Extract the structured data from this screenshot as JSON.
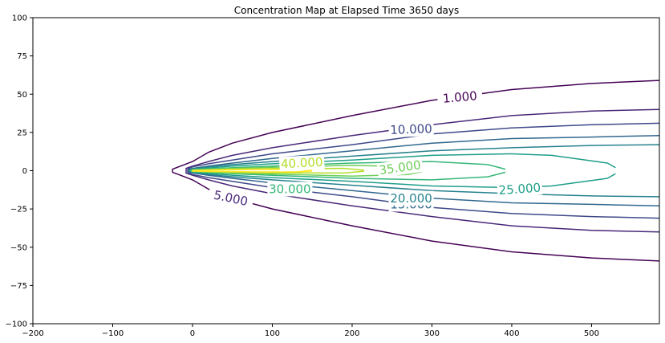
{
  "chart_data": {
    "type": "contour",
    "title": "Concentration Map at Elapsed Time 3650 days",
    "xlim": [
      -200,
      585
    ],
    "ylim": [
      -100,
      100
    ],
    "x_ticks": [
      -200,
      -100,
      0,
      100,
      200,
      300,
      400,
      500
    ],
    "y_ticks": [
      -100,
      -75,
      -50,
      -25,
      0,
      25,
      50,
      75,
      100
    ],
    "grid": false,
    "colormap": "viridis",
    "contours": [
      {
        "level": 1.0,
        "color": "#440154",
        "points": [
          [
            585,
            59
          ],
          [
            500,
            57
          ],
          [
            400,
            53
          ],
          [
            300,
            46
          ],
          [
            200,
            36
          ],
          [
            100,
            25
          ],
          [
            50,
            18
          ],
          [
            20,
            12
          ],
          [
            0,
            6
          ],
          [
            -10,
            4
          ],
          [
            -25,
            1
          ],
          [
            -25,
            -1
          ],
          [
            -10,
            -4
          ],
          [
            0,
            -6
          ],
          [
            20,
            -12
          ],
          [
            50,
            -18
          ],
          [
            100,
            -25
          ],
          [
            200,
            -36
          ],
          [
            300,
            -46
          ],
          [
            400,
            -53
          ],
          [
            500,
            -57
          ],
          [
            585,
            -59
          ]
        ],
        "label": {
          "text": "1.000",
          "x": 335,
          "y": 48,
          "rotation": -5
        }
      },
      {
        "level": 5.0,
        "color": "#482878",
        "points": [
          [
            585,
            40
          ],
          [
            500,
            39
          ],
          [
            400,
            36
          ],
          [
            300,
            30
          ],
          [
            200,
            23
          ],
          [
            100,
            15
          ],
          [
            50,
            10
          ],
          [
            20,
            6
          ],
          [
            0,
            3
          ],
          [
            -8,
            1.5
          ],
          [
            -8,
            -1.5
          ],
          [
            0,
            -3
          ],
          [
            20,
            -6
          ],
          [
            50,
            -10
          ],
          [
            100,
            -15
          ],
          [
            200,
            -23
          ],
          [
            300,
            -30
          ],
          [
            400,
            -36
          ],
          [
            500,
            -39
          ],
          [
            585,
            -40
          ]
        ],
        "label": {
          "text": "5.000",
          "x": 48,
          "y": -18,
          "rotation": 12
        }
      },
      {
        "level": 10.0,
        "color": "#3e4989",
        "points": [
          [
            585,
            31
          ],
          [
            500,
            30
          ],
          [
            400,
            28
          ],
          [
            300,
            24
          ],
          [
            200,
            17
          ],
          [
            100,
            11
          ],
          [
            50,
            7
          ],
          [
            20,
            4.5
          ],
          [
            0,
            2.5
          ],
          [
            -6,
            1
          ],
          [
            -6,
            -1
          ],
          [
            0,
            -2.5
          ],
          [
            20,
            -4.5
          ],
          [
            50,
            -7
          ],
          [
            100,
            -11
          ],
          [
            200,
            -17
          ],
          [
            300,
            -24
          ],
          [
            400,
            -28
          ],
          [
            500,
            -30
          ],
          [
            585,
            -31
          ]
        ],
        "label": {
          "text": "10.000",
          "x": 274,
          "y": 27,
          "rotation": -2
        }
      },
      {
        "level": 15.0,
        "color": "#31688e",
        "points": [
          [
            585,
            23
          ],
          [
            500,
            22
          ],
          [
            400,
            21
          ],
          [
            300,
            18
          ],
          [
            200,
            13
          ],
          [
            100,
            8
          ],
          [
            50,
            5
          ],
          [
            20,
            3
          ],
          [
            0,
            1.5
          ],
          [
            -5,
            0.5
          ],
          [
            -5,
            -0.5
          ],
          [
            0,
            -1.5
          ],
          [
            20,
            -3
          ],
          [
            50,
            -5
          ],
          [
            100,
            -8
          ],
          [
            200,
            -13
          ],
          [
            300,
            -18
          ],
          [
            400,
            -21
          ],
          [
            500,
            -22
          ],
          [
            585,
            -23
          ]
        ],
        "label": {
          "text": "15.000",
          "x": 274,
          "y": -22,
          "rotation": 0
        }
      },
      {
        "level": 20.0,
        "color": "#26828e",
        "points": [
          [
            585,
            17
          ],
          [
            500,
            16.5
          ],
          [
            400,
            15
          ],
          [
            300,
            13
          ],
          [
            200,
            9.5
          ],
          [
            100,
            6
          ],
          [
            50,
            4
          ],
          [
            20,
            2.5
          ],
          [
            0,
            1.2
          ],
          [
            -4,
            0.4
          ],
          [
            -4,
            -0.4
          ],
          [
            0,
            -1.2
          ],
          [
            20,
            -2.5
          ],
          [
            50,
            -4
          ],
          [
            100,
            -6
          ],
          [
            200,
            -9.5
          ],
          [
            300,
            -13
          ],
          [
            400,
            -15
          ],
          [
            500,
            -16.5
          ],
          [
            585,
            -17
          ]
        ],
        "label": {
          "text": "20.000",
          "x": 274,
          "y": -18,
          "rotation": 0
        }
      },
      {
        "level": 25.0,
        "color": "#1f9e89",
        "points": [
          [
            530,
            2
          ],
          [
            520,
            5
          ],
          [
            450,
            10
          ],
          [
            400,
            11
          ],
          [
            300,
            10
          ],
          [
            200,
            7
          ],
          [
            100,
            4.5
          ],
          [
            50,
            3
          ],
          [
            20,
            1.8
          ],
          [
            0,
            1
          ],
          [
            -3,
            0.3
          ],
          [
            -3,
            -0.3
          ],
          [
            0,
            -1
          ],
          [
            20,
            -1.8
          ],
          [
            50,
            -3
          ],
          [
            100,
            -4.5
          ],
          [
            200,
            -7
          ],
          [
            300,
            -10
          ],
          [
            400,
            -11
          ],
          [
            450,
            -10
          ],
          [
            520,
            -5
          ],
          [
            530,
            -2
          ]
        ],
        "label": {
          "text": "25.000",
          "x": 410,
          "y": -12,
          "rotation": -4
        }
      },
      {
        "level": 30.0,
        "color": "#35b779",
        "points": [
          [
            392,
            1
          ],
          [
            370,
            4
          ],
          [
            300,
            6
          ],
          [
            200,
            5
          ],
          [
            100,
            3
          ],
          [
            50,
            2
          ],
          [
            20,
            1.2
          ],
          [
            0,
            0.6
          ],
          [
            -2,
            0.2
          ],
          [
            -2,
            -0.2
          ],
          [
            0,
            -0.6
          ],
          [
            20,
            -1.2
          ],
          [
            50,
            -2
          ],
          [
            100,
            -3
          ],
          [
            200,
            -5
          ],
          [
            300,
            -6
          ],
          [
            370,
            -4
          ],
          [
            392,
            -1
          ]
        ],
        "label": {
          "text": "30.000",
          "x": 122,
          "y": -12,
          "rotation": 0
        }
      },
      {
        "level": 35.0,
        "color": "#6ece58",
        "points": [
          [
            288,
            0.5
          ],
          [
            270,
            2.5
          ],
          [
            200,
            3.5
          ],
          [
            100,
            2.2
          ],
          [
            50,
            1.5
          ],
          [
            20,
            0.9
          ],
          [
            0,
            0.4
          ],
          [
            -1,
            0.1
          ],
          [
            -1,
            -0.1
          ],
          [
            0,
            -0.4
          ],
          [
            20,
            -0.9
          ],
          [
            50,
            -1.5
          ],
          [
            100,
            -2.2
          ],
          [
            200,
            -3.5
          ],
          [
            270,
            -2.5
          ],
          [
            288,
            -0.5
          ]
        ],
        "label": {
          "text": "35.000",
          "x": 260,
          "y": 2,
          "rotation": -8
        }
      },
      {
        "level": 40.0,
        "color": "#b5de2b",
        "points": [
          [
            215,
            0.3
          ],
          [
            190,
            1.5
          ],
          [
            100,
            1.4
          ],
          [
            50,
            1
          ],
          [
            20,
            0.6
          ],
          [
            0,
            0.25
          ],
          [
            -0.5,
            0.05
          ],
          [
            -0.5,
            -0.05
          ],
          [
            0,
            -0.25
          ],
          [
            20,
            -0.6
          ],
          [
            50,
            -1
          ],
          [
            100,
            -1.4
          ],
          [
            190,
            -1.5
          ],
          [
            215,
            -0.3
          ]
        ],
        "label": {
          "text": "40.000",
          "x": 137,
          "y": 5,
          "rotation": -3
        }
      },
      {
        "level": 45.0,
        "color": "#fde725",
        "points": [
          [
            150,
            0.2
          ],
          [
            130,
            0.8
          ],
          [
            80,
            0.8
          ],
          [
            40,
            0.55
          ],
          [
            15,
            0.3
          ],
          [
            0,
            0.1
          ],
          [
            0,
            -0.1
          ],
          [
            15,
            -0.3
          ],
          [
            40,
            -0.55
          ],
          [
            80,
            -0.8
          ],
          [
            130,
            -0.8
          ],
          [
            150,
            -0.2
          ]
        ],
        "label": null
      }
    ]
  }
}
